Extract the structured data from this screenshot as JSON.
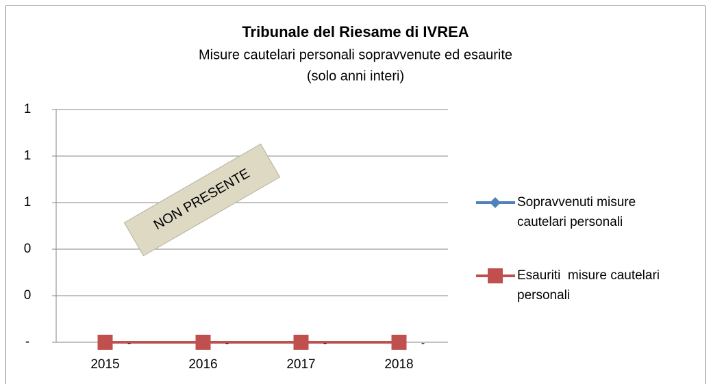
{
  "chart_data": {
    "type": "line",
    "title": "Tribunale del Riesame di IVREA",
    "subtitle": [
      "Misure cautelari personali sopravvenute ed esaurite",
      "(solo anni interi)"
    ],
    "categories": [
      "2015",
      "2016",
      "2017",
      "2018"
    ],
    "series": [
      {
        "name": "Sopravvenuti misure cautelari personali",
        "color": "#4f81bd",
        "marker": "diamond",
        "values": [
          0,
          0,
          0,
          0
        ]
      },
      {
        "name": "Esauriti  misure cautelari personali",
        "color": "#c0504d",
        "marker": "square",
        "values": [
          0,
          0,
          0,
          0
        ],
        "value_labels": [
          "-",
          "-",
          "-",
          "-"
        ]
      }
    ],
    "ylim": [
      0,
      1
    ],
    "yticks": [
      {
        "value": 0,
        "label": "-"
      },
      {
        "value": 0.2,
        "label": "0"
      },
      {
        "value": 0.4,
        "label": "0"
      },
      {
        "value": 0.6,
        "label": "1"
      },
      {
        "value": 0.8,
        "label": "1"
      },
      1
    ],
    "grid": true,
    "legend": "right",
    "annotation": "NON PRESENTE"
  }
}
